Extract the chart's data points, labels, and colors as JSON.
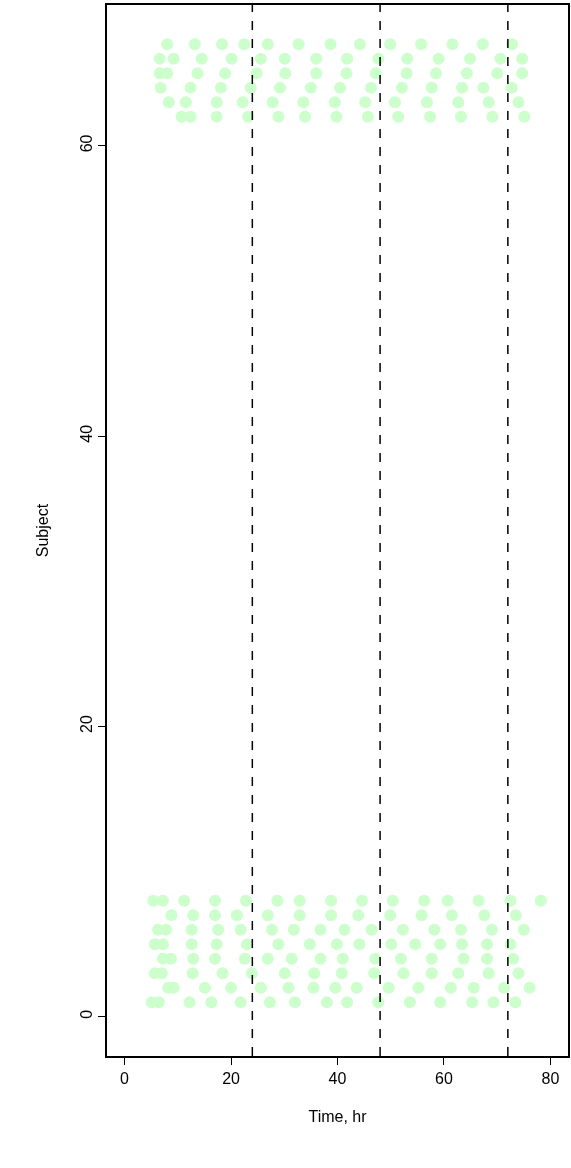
{
  "chart_data": {
    "type": "scatter",
    "xlabel": "Time, hr",
    "ylabel": "Subject",
    "xlim": [
      -3.3,
      83.3
    ],
    "ylim": [
      -2.7,
      69.7
    ],
    "xticks": [
      0,
      20,
      40,
      60,
      80
    ],
    "yticks": [
      0,
      20,
      40,
      60
    ],
    "grid": false,
    "marker": "circle",
    "series": [
      {
        "color": "#ccffcc",
        "x": [
          8.0,
          13.2,
          18.3,
          22.5,
          26.9,
          32.7,
          38.7,
          44.2,
          49.9,
          55.7,
          61.6,
          67.3,
          72.8
        ],
        "values": [
          67,
          67,
          67,
          67,
          67,
          67,
          67,
          67,
          67,
          67,
          67,
          67,
          67
        ]
      },
      {
        "color": "#ccffcc",
        "x": [
          6.6,
          9.2,
          14.5,
          20.1,
          25.6,
          30.1,
          36.0,
          41.8,
          47.7,
          53.1,
          59.0,
          64.9,
          70.6,
          74.7
        ],
        "values": [
          66,
          66,
          66,
          66,
          66,
          66,
          66,
          66,
          66,
          66,
          66,
          66,
          66,
          66
        ]
      },
      {
        "color": "#ccffcc",
        "x": [
          6.6,
          8.0,
          13.7,
          18.9,
          24.8,
          30.2,
          36.0,
          41.7,
          47.2,
          53.0,
          58.5,
          64.3,
          70.0,
          74.7
        ],
        "values": [
          65,
          65,
          65,
          65,
          65,
          65,
          65,
          65,
          65,
          65,
          65,
          65,
          65,
          65
        ]
      },
      {
        "color": "#ccffcc",
        "x": [
          6.8,
          12.4,
          18.1,
          23.7,
          29.2,
          35.0,
          40.5,
          46.3,
          52.1,
          57.7,
          63.4,
          67.4,
          72.7
        ],
        "values": [
          64,
          64,
          64,
          64,
          64,
          64,
          64,
          64,
          64,
          64,
          64,
          64,
          64
        ]
      },
      {
        "color": "#ccffcc",
        "x": [
          8.3,
          11.5,
          17.3,
          22.2,
          27.8,
          33.6,
          39.5,
          45.2,
          50.8,
          56.8,
          62.7,
          68.4,
          74.0
        ],
        "values": [
          63,
          63,
          63,
          63,
          63,
          63,
          63,
          63,
          63,
          63,
          63,
          63,
          63
        ]
      },
      {
        "color": "#ccffcc",
        "x": [
          10.7,
          12.4,
          17.3,
          23.2,
          28.9,
          33.9,
          39.8,
          45.7,
          51.4,
          57.4,
          63.2,
          69.1,
          75.1
        ],
        "values": [
          62,
          62,
          62,
          62,
          62,
          62,
          62,
          62,
          62,
          62,
          62,
          62,
          62
        ]
      },
      {
        "color": "#ccffcc",
        "x": [
          5.4,
          7.2,
          11.2,
          17.0,
          22.8,
          28.7,
          32.9,
          38.8,
          44.6,
          50.4,
          56.3,
          60.7,
          66.5,
          72.5,
          78.2
        ],
        "values": [
          8,
          8,
          8,
          8,
          8,
          8,
          8,
          8,
          8,
          8,
          8,
          8,
          8,
          8,
          8
        ]
      },
      {
        "color": "#ccffcc",
        "x": [
          8.8,
          12.9,
          17.0,
          21.1,
          26.9,
          32.9,
          38.8,
          43.9,
          49.9,
          55.8,
          61.5,
          67.6,
          73.5
        ],
        "values": [
          7,
          7,
          7,
          7,
          7,
          7,
          7,
          7,
          7,
          7,
          7,
          7,
          7
        ]
      },
      {
        "color": "#ccffcc",
        "x": [
          6.3,
          7.8,
          12.6,
          17.6,
          21.8,
          27.7,
          31.8,
          36.8,
          41.3,
          46.4,
          52.3,
          58.2,
          63.2,
          69.0,
          75.0
        ],
        "values": [
          6,
          6,
          6,
          6,
          6,
          6,
          6,
          6,
          6,
          6,
          6,
          6,
          6,
          6,
          6
        ]
      },
      {
        "color": "#ccffcc",
        "x": [
          5.7,
          7.2,
          12.6,
          17.3,
          23.0,
          28.9,
          34.8,
          39.9,
          44.1,
          50.1,
          54.6,
          59.3,
          63.4,
          68.1,
          72.5
        ],
        "values": [
          5,
          5,
          5,
          5,
          5,
          5,
          5,
          5,
          5,
          5,
          5,
          5,
          5,
          5,
          5
        ]
      },
      {
        "color": "#ccffcc",
        "x": [
          7.2,
          8.7,
          12.9,
          17.0,
          22.6,
          26.9,
          31.4,
          36.8,
          41.0,
          47.1,
          51.9,
          57.7,
          63.7,
          68.1,
          73.0
        ],
        "values": [
          4,
          4,
          4,
          4,
          4,
          4,
          4,
          4,
          4,
          4,
          4,
          4,
          4,
          4,
          4
        ]
      },
      {
        "color": "#ccffcc",
        "x": [
          5.7,
          7.0,
          12.8,
          18.4,
          23.9,
          30.1,
          35.6,
          40.8,
          46.9,
          52.4,
          57.7,
          62.7,
          68.4,
          74.0
        ],
        "values": [
          3,
          3,
          3,
          3,
          3,
          3,
          3,
          3,
          3,
          3,
          3,
          3,
          3,
          3
        ]
      },
      {
        "color": "#ccffcc",
        "x": [
          8.2,
          9.2,
          15.1,
          20.0,
          25.6,
          30.8,
          35.5,
          39.6,
          43.6,
          49.6,
          55.2,
          61.3,
          65.6,
          71.3,
          76.1
        ],
        "values": [
          2,
          2,
          2,
          2,
          2,
          2,
          2,
          2,
          2,
          2,
          2,
          2,
          2,
          2,
          2
        ]
      },
      {
        "color": "#ccffcc",
        "x": [
          5.1,
          6.4,
          12.2,
          16.3,
          21.8,
          27.3,
          32.0,
          38.0,
          41.8,
          47.7,
          53.6,
          59.3,
          65.3,
          69.3,
          73.4
        ],
        "values": [
          1,
          1,
          1,
          1,
          1,
          1,
          1,
          1,
          1,
          1,
          1,
          1,
          1,
          1,
          1
        ]
      }
    ],
    "ref_lines": [
      {
        "axis": "x",
        "value": 24,
        "color": "#000000",
        "line_style": "dashed"
      },
      {
        "axis": "x",
        "value": 48,
        "color": "#000000",
        "line_style": "dashed"
      },
      {
        "axis": "x",
        "value": 72,
        "color": "#000000",
        "line_style": "dashed"
      }
    ]
  }
}
